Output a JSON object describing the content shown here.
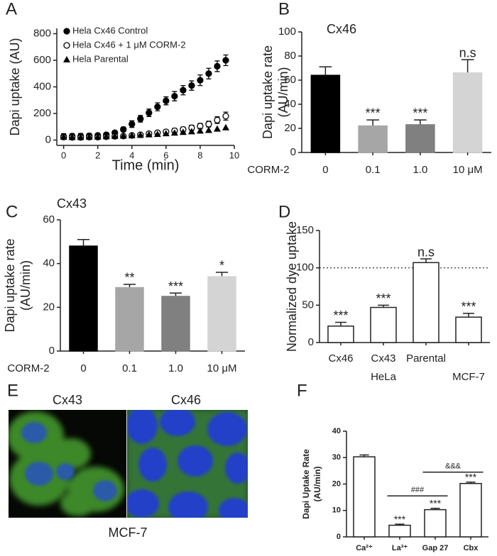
{
  "chart_data": [
    {
      "type": "scatter",
      "panel": "A",
      "ylabel": [
        "Dapi uptake (AU)"
      ],
      "xlabel": "Time (min)",
      "x": [
        0,
        0.5,
        1,
        1.5,
        2,
        2.5,
        3,
        3.5,
        4,
        4.5,
        5,
        5.5,
        6,
        6.5,
        7,
        7.5,
        8,
        8.5,
        9,
        9.5
      ],
      "series": [
        {
          "name": "Hela Cx46 Control",
          "marker": "circle",
          "color": "#000000",
          "values": [
            28,
            30,
            30,
            32,
            35,
            40,
            55,
            80,
            120,
            160,
            205,
            250,
            295,
            330,
            375,
            410,
            450,
            500,
            555,
            600
          ],
          "errors": [
            20,
            18,
            20,
            18,
            15,
            15,
            15,
            18,
            25,
            25,
            28,
            30,
            30,
            35,
            35,
            35,
            40,
            40,
            40,
            40
          ]
        },
        {
          "name": "Hela Cx46 + 1 μM CORM-2",
          "marker": "open-circle",
          "color": "#000000",
          "values": [
            22,
            20,
            20,
            22,
            22,
            25,
            28,
            30,
            35,
            40,
            48,
            55,
            62,
            70,
            80,
            92,
            105,
            120,
            150,
            180
          ],
          "errors": [
            15,
            12,
            12,
            12,
            10,
            10,
            10,
            10,
            12,
            12,
            15,
            15,
            15,
            18,
            18,
            20,
            20,
            22,
            25,
            30
          ]
        },
        {
          "name": "Hela Parental",
          "marker": "triangle",
          "color": "#000000",
          "values": [
            25,
            22,
            22,
            24,
            25,
            28,
            30,
            32,
            35,
            38,
            42,
            45,
            50,
            55,
            60,
            65,
            70,
            75,
            85,
            95
          ]
        }
      ],
      "xlim": [
        -0.4,
        10
      ],
      "xticks": [
        0,
        2,
        4,
        6,
        8,
        10
      ],
      "ylim": [
        -40,
        840
      ],
      "yticks": [
        0,
        200,
        400,
        600,
        800
      ]
    },
    {
      "type": "bar",
      "panel": "B",
      "title": "Cx46",
      "ylabel": [
        "Dapi uptake rate",
        "(AU/min)"
      ],
      "x_label": "CORM-2",
      "categories": [
        "0",
        "0.1",
        "1.0",
        "10 μM"
      ],
      "values": [
        64,
        22,
        23,
        66
      ],
      "errors": [
        7,
        5,
        4,
        11
      ],
      "significance": [
        null,
        "***",
        "***",
        "n.s"
      ],
      "colors": [
        "#000000",
        "#a6a6a6",
        "#808080",
        "#d4d4d4"
      ],
      "ylim": [
        0,
        100
      ],
      "yticks": [
        0,
        20,
        40,
        60,
        80,
        100
      ]
    },
    {
      "type": "bar",
      "panel": "C",
      "title": "Cx43",
      "ylabel": [
        "Dapi uptake rate",
        "(AU/min)"
      ],
      "x_label": "CORM-2",
      "categories": [
        "0",
        "0.1",
        "1.0",
        "10 μM"
      ],
      "values": [
        48,
        29,
        25,
        34
      ],
      "errors": [
        3,
        1.5,
        1.5,
        2
      ],
      "significance": [
        null,
        "**",
        "***",
        "*"
      ],
      "colors": [
        "#000000",
        "#a6a6a6",
        "#808080",
        "#d4d4d4"
      ],
      "ylim": [
        0,
        60
      ],
      "yticks": [
        0,
        20,
        40,
        60
      ]
    },
    {
      "type": "bar",
      "panel": "D",
      "ylabel": [
        "Normalized dye uptake"
      ],
      "categories": [
        "Cx46",
        "Cx43",
        "Parental",
        null
      ],
      "groups": [
        "HeLa",
        "MCF-7"
      ],
      "values": [
        22,
        47,
        107,
        34
      ],
      "errors": [
        5,
        3,
        5,
        5
      ],
      "significance": [
        "***",
        "***",
        "n.s",
        "***"
      ],
      "colors": [
        "#ffffff",
        "#ffffff",
        "#ffffff",
        "#ffffff"
      ],
      "reference_line": 100,
      "ylim": [
        0,
        150
      ],
      "yticks": [
        0,
        50,
        100,
        150
      ]
    },
    {
      "type": "bar",
      "panel": "F",
      "ylabel": [
        "Dapi Uptake Rate",
        "(AU/min)"
      ],
      "categories": [
        "Ca²⁺",
        "La³⁺",
        "Gap 27",
        "Cbx"
      ],
      "values": [
        30.3,
        4.4,
        10.3,
        20.2
      ],
      "errors": [
        0.7,
        0.4,
        0.5,
        0.5
      ],
      "significance": [
        null,
        "***",
        "***",
        "***"
      ],
      "colors": [
        "#ffffff",
        "#ffffff",
        "#ffffff",
        "#ffffff"
      ],
      "brackets": [
        {
          "label": "###",
          "y": 15.5
        },
        {
          "label": "&&&",
          "y": 24.5
        }
      ],
      "ylim": [
        0,
        40
      ],
      "yticks": [
        0,
        10,
        20,
        30,
        40
      ]
    }
  ],
  "image_panel": {
    "panel": "E",
    "labels": [
      "Cx43",
      "Cx46"
    ],
    "caption": "MCF-7"
  }
}
